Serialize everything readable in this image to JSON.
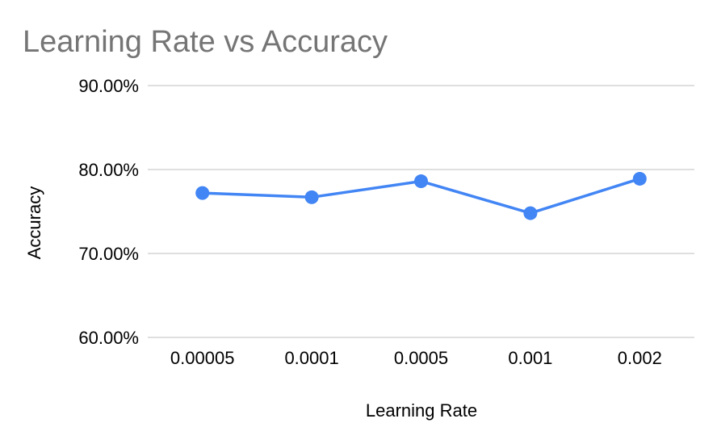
{
  "chart_data": {
    "type": "line",
    "title": "Learning Rate vs Accuracy",
    "xlabel": "Learning Rate",
    "ylabel": "Accuracy",
    "categories": [
      "0.00005",
      "0.0001",
      "0.0005",
      "0.001",
      "0.002"
    ],
    "series": [
      {
        "values": [
          0.772,
          0.767,
          0.786,
          0.748,
          0.789
        ],
        "color": "#4285f4"
      }
    ],
    "ylim": [
      0.6,
      0.9
    ],
    "yticks": [
      0.6,
      0.7,
      0.8,
      0.9
    ],
    "ytick_labels": [
      "60.00%",
      "70.00%",
      "80.00%",
      "90.00%"
    ],
    "grid": true,
    "legend": "none",
    "colors": {
      "title": "#757575",
      "grid": "#cccccc",
      "text": "#000000"
    }
  }
}
